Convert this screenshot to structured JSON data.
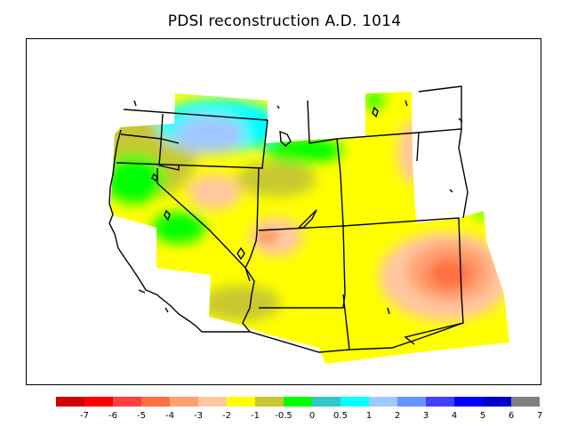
{
  "title": "PDSI reconstruction A.D. 1014",
  "colors": {
    "nodata": "#ffffff",
    "bins": [
      "#d00000",
      "#ff0000",
      "#ff4040",
      "#ff7040",
      "#ffa070",
      "#ffc8a0",
      "#ffff00",
      "#c8c832",
      "#00ff00",
      "#32c8c8",
      "#00ffff",
      "#a0c8ff",
      "#6496ff",
      "#4040ff",
      "#0000ff",
      "#0000c8",
      "#808080"
    ]
  },
  "colorbar": {
    "tick_labels": [
      "-7",
      "-6",
      "-5",
      "-4",
      "-3",
      "-2",
      "-1",
      "-0.5",
      "0",
      "0.5",
      "1",
      "2",
      "3",
      "4",
      "5",
      "6",
      "7"
    ]
  },
  "chart_data": {
    "type": "heatmap",
    "title": "PDSI reconstruction A.D. 1014",
    "region": "Western United States",
    "color_levels": [
      -7,
      -6,
      -5,
      -4,
      -3,
      -2,
      -1,
      -0.5,
      0,
      0.5,
      1,
      2,
      3,
      4,
      5,
      6,
      7
    ],
    "features": [
      {
        "area": "southern Idaho",
        "value_range": [
          1,
          2
        ]
      },
      {
        "area": "central Montana",
        "value_range": [
          0.5,
          1
        ]
      },
      {
        "area": "eastern Oregon",
        "value_range": [
          -1,
          0
        ]
      },
      {
        "area": "northern California",
        "value_range": [
          -0.5,
          0
        ]
      },
      {
        "area": "northern Nevada",
        "value_range": [
          -3,
          -2
        ]
      },
      {
        "area": "western Utah",
        "value_range": [
          -3,
          -2
        ]
      },
      {
        "area": "New Mexico / west Texas",
        "value_range": [
          -5,
          -3
        ]
      },
      {
        "area": "eastern Wyoming",
        "value_range": [
          -3,
          -2
        ]
      },
      {
        "area": "Arizona",
        "value_range": [
          -2,
          -1
        ]
      }
    ]
  }
}
